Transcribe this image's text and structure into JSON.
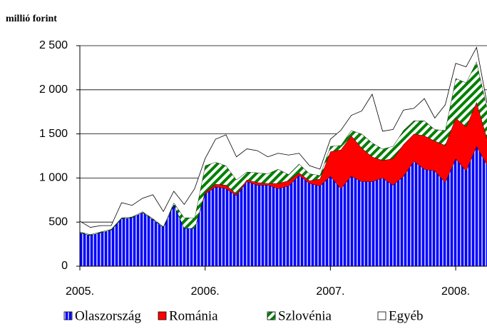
{
  "chart_data": {
    "type": "stacked-area",
    "ylabel": "millió forint",
    "categories": [
      "2005.",
      null,
      null,
      null,
      null,
      null,
      null,
      null,
      null,
      null,
      null,
      null,
      "2006.",
      null,
      null,
      null,
      null,
      null,
      null,
      null,
      null,
      null,
      null,
      null,
      "2007.",
      null,
      null,
      null,
      null,
      null,
      null,
      null,
      null,
      null,
      null,
      null,
      "2008.",
      null,
      null,
      null
    ],
    "series": [
      {
        "name": "Olaszország",
        "color": "#0000ff",
        "hatch": "vertical",
        "values": [
          380,
          350,
          380,
          410,
          540,
          550,
          610,
          530,
          440,
          700,
          430,
          430,
          820,
          900,
          880,
          800,
          960,
          920,
          920,
          880,
          910,
          1030,
          940,
          910,
          1020,
          880,
          1020,
          960,
          960,
          1000,
          920,
          1020,
          1190,
          1100,
          1080,
          950,
          1220,
          1080,
          1360,
          1150
        ]
      },
      {
        "name": "Románia",
        "color": "#ff0000",
        "hatch": "none",
        "values": [
          0,
          0,
          0,
          0,
          0,
          0,
          0,
          0,
          0,
          0,
          0,
          0,
          20,
          30,
          40,
          20,
          20,
          30,
          20,
          60,
          60,
          30,
          30,
          80,
          280,
          440,
          460,
          380,
          280,
          200,
          300,
          360,
          310,
          380,
          340,
          420,
          460,
          500,
          500,
          300
        ]
      },
      {
        "name": "Szlovénia",
        "color": "#008000",
        "hatch": "diagonal",
        "values": [
          10,
          10,
          10,
          10,
          10,
          10,
          10,
          10,
          10,
          20,
          120,
          120,
          300,
          250,
          220,
          160,
          90,
          110,
          110,
          160,
          70,
          100,
          80,
          40,
          60,
          50,
          60,
          160,
          160,
          130,
          140,
          160,
          150,
          170,
          130,
          170,
          450,
          500,
          460,
          350
        ]
      },
      {
        "name": "Egyéb",
        "color": "#ffffff",
        "hatch": "none",
        "values": [
          120,
          80,
          70,
          40,
          170,
          130,
          150,
          270,
          170,
          130,
          150,
          330,
          80,
          260,
          350,
          260,
          260,
          250,
          190,
          180,
          220,
          120,
          90,
          70,
          80,
          170,
          170,
          260,
          550,
          200,
          190,
          230,
          140,
          250,
          130,
          290,
          170,
          180,
          160,
          50
        ]
      }
    ],
    "ylim": [
      0,
      2500
    ],
    "yticks": [
      0,
      {
        "value": 500,
        "label": "500"
      },
      {
        "value": 1000,
        "label": "1 000"
      },
      {
        "value": 1500,
        "label": "1 500"
      },
      {
        "value": 2000,
        "label": "2 000"
      },
      {
        "value": 2500,
        "label": "2 500"
      }
    ],
    "grid": true
  }
}
